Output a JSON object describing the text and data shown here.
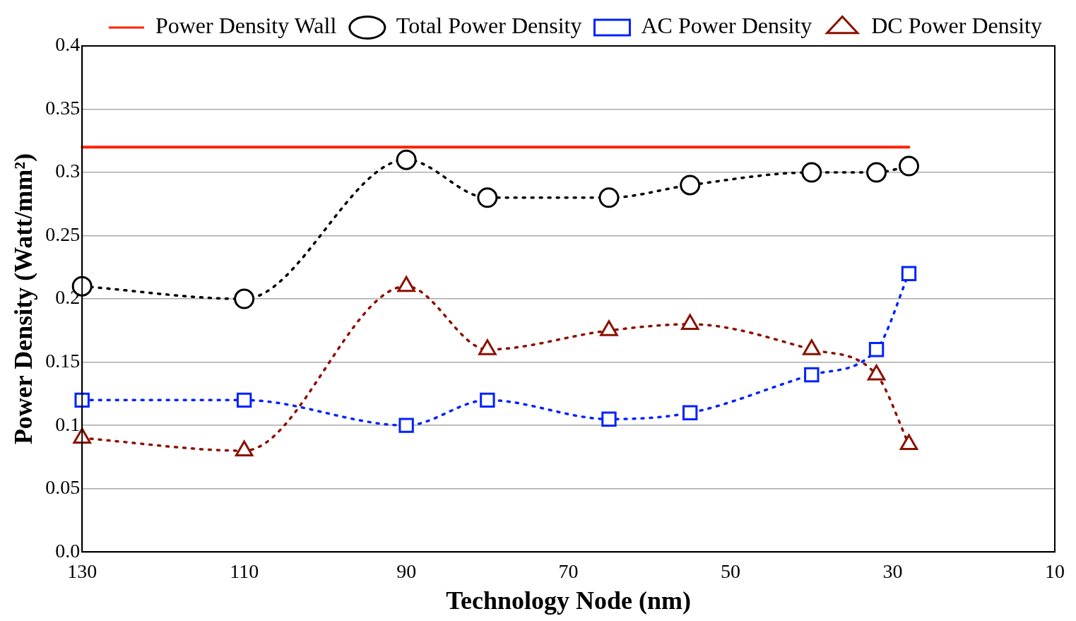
{
  "chart_data": {
    "type": "line",
    "xlabel": "Technology Node (nm)",
    "ylabel": "Power Density (Watt/mm²)",
    "xlim": [
      130,
      10
    ],
    "xticks": [
      130,
      110,
      90,
      70,
      50,
      30,
      10
    ],
    "ylim": [
      0,
      0.4
    ],
    "yticks": [
      {
        "value": 0,
        "label": "0.0"
      },
      0.05,
      0.1,
      0.15,
      0.2,
      0.25,
      0.3,
      0.35,
      0.4
    ],
    "grid": "y",
    "legend": "top right",
    "line_style": "dotted",
    "series": [
      {
        "name": "Power Density Wall",
        "color": "#ff2200",
        "x": [
          130,
          28
        ],
        "values": [
          0.32,
          0.32
        ],
        "marker": "none",
        "line_style": "solid"
      },
      {
        "name": "Total Power Density",
        "color": "#000000",
        "x": [
          130,
          110,
          90,
          80,
          65,
          55,
          40,
          32,
          28
        ],
        "values": [
          0.21,
          0.2,
          0.31,
          0.28,
          0.28,
          0.29,
          0.3,
          0.3,
          0.305
        ],
        "marker": "circle"
      },
      {
        "name": "AC Power Density",
        "color": "#0022ff",
        "x": [
          130,
          110,
          90,
          80,
          65,
          55,
          40,
          32,
          28
        ],
        "values": [
          0.12,
          0.12,
          0.1,
          0.12,
          0.105,
          0.11,
          0.14,
          0.16,
          0.22
        ],
        "marker": "square"
      },
      {
        "name": "DC Power Density",
        "color": "#8b1100",
        "x": [
          130,
          110,
          90,
          80,
          65,
          55,
          40,
          32,
          28
        ],
        "values": [
          0.09,
          0.08,
          0.21,
          0.16,
          0.175,
          0.18,
          0.16,
          0.14,
          0.085
        ],
        "marker": "triangle"
      }
    ]
  }
}
